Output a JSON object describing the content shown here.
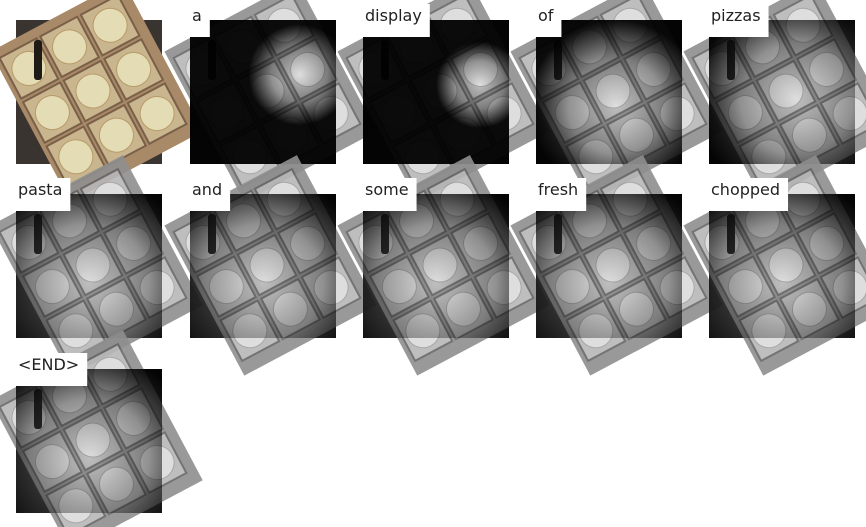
{
  "words": [
    "a",
    "display",
    "of",
    "pizzas",
    "pasta",
    "and",
    "some",
    "fresh",
    "chopped",
    "<END>"
  ]
}
